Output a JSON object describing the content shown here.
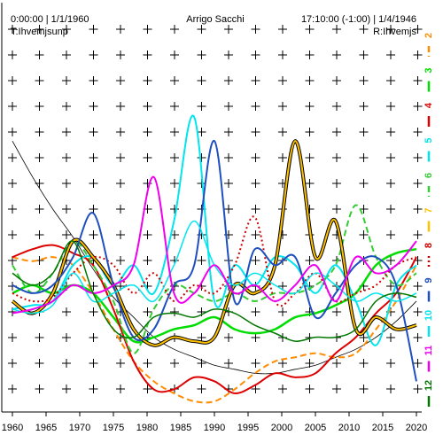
{
  "chart_data": {
    "type": "line",
    "header_left": "0:00:00 | 1/1/1960",
    "title": "Arrigo Sacchi",
    "header_right": "17:10:00 (-1:00) | 1/4/1946",
    "subheader_left": "T:Ihvemjsunp",
    "subheader_right": "R:Ihvemjs",
    "x": [
      1960,
      1963,
      1966,
      1969,
      1972,
      1975,
      1978,
      1981,
      1984,
      1987,
      1990,
      1993,
      1996,
      1999,
      2002,
      2005,
      2008,
      2011,
      2014,
      2017,
      2020
    ],
    "xlim": [
      1960,
      2020
    ],
    "xticks": [
      1960,
      1965,
      1970,
      1975,
      1980,
      1985,
      1990,
      1995,
      2000,
      2005,
      2010,
      2015,
      2020
    ],
    "ylim": [
      0,
      100
    ],
    "series": [
      {
        "color": "#000000",
        "width": 0.8,
        "values": [
          67,
          58,
          50,
          43,
          35,
          28,
          23,
          18,
          15,
          13,
          11,
          10,
          9,
          9,
          10,
          11,
          13,
          15,
          18,
          22,
          27
        ]
      },
      {
        "name": "2",
        "color": "#ff8c00",
        "dash": "dashed",
        "width": 2,
        "values": [
          38,
          37,
          38,
          36,
          29,
          20,
          12,
          7,
          4,
          2,
          2,
          5,
          9,
          12,
          13,
          14,
          13,
          14,
          20,
          27,
          36
        ]
      },
      {
        "name": "3",
        "color": "#00dd00",
        "width": 2.5,
        "values": [
          29,
          31,
          29,
          31,
          29,
          23,
          17,
          18,
          20,
          21,
          23,
          20,
          19,
          20,
          23,
          24,
          26,
          29,
          36,
          39,
          40
        ]
      },
      {
        "name": "4",
        "color": "#dd0000",
        "width": 2,
        "values": [
          38,
          40,
          41,
          39,
          36,
          25,
          12,
          5,
          5,
          8,
          7,
          4,
          6,
          9,
          8,
          9,
          14,
          18,
          24,
          29,
          38
        ]
      },
      {
        "name": "5",
        "color": "#00e5ee",
        "width": 2,
        "values": [
          25,
          26,
          27,
          36,
          38,
          31,
          36,
          29,
          47,
          73,
          27,
          36,
          31,
          38,
          36,
          29,
          36,
          27,
          16,
          31,
          36
        ]
      },
      {
        "name": "6",
        "color": "#33cc33",
        "dash": "dashed",
        "width": 2,
        "values": [
          36,
          29,
          34,
          42,
          36,
          27,
          14,
          25,
          31,
          29,
          27,
          29,
          27,
          29,
          29,
          31,
          36,
          51,
          38,
          31,
          34
        ]
      },
      {
        "name": "7",
        "color": "#ffc000",
        "outline": "#000000",
        "width": 2,
        "values": [
          27,
          24,
          29,
          42,
          38,
          31,
          20,
          16,
          18,
          17,
          18,
          31,
          29,
          36,
          67,
          38,
          47,
          20,
          23,
          20,
          21
        ]
      },
      {
        "name": "8",
        "color": "#cc0000",
        "dash": "dotted",
        "width": 2,
        "values": [
          29,
          27,
          28,
          34,
          38,
          36,
          29,
          34,
          27,
          31,
          29,
          36,
          48,
          27,
          29,
          34,
          27,
          29,
          31,
          36,
          38
        ]
      },
      {
        "name": "9",
        "color": "#1f4fbf",
        "width": 2,
        "values": [
          31,
          29,
          31,
          38,
          49,
          31,
          18,
          20,
          31,
          36,
          67,
          27,
          40,
          36,
          38,
          23,
          29,
          36,
          38,
          31,
          7
        ]
      },
      {
        "name": "10",
        "color": "#00e5ee",
        "width": 1.5,
        "values": [
          25,
          24,
          26,
          34,
          27,
          29,
          31,
          27,
          36,
          47,
          36,
          31,
          34,
          31,
          29,
          34,
          31,
          27,
          29,
          27,
          29
        ]
      },
      {
        "name": "11",
        "color": "#ee00ee",
        "width": 2,
        "values": [
          24,
          25,
          27,
          31,
          29,
          31,
          36,
          58,
          29,
          29,
          36,
          29,
          31,
          27,
          31,
          36,
          27,
          38,
          34,
          36,
          42
        ]
      },
      {
        "name": "12",
        "color": "#007700",
        "width": 1.5,
        "values": [
          34,
          31,
          34,
          42,
          29,
          20,
          18,
          23,
          24,
          23,
          25,
          24,
          21,
          19,
          17,
          18,
          18,
          20,
          27,
          29,
          28
        ]
      }
    ]
  }
}
